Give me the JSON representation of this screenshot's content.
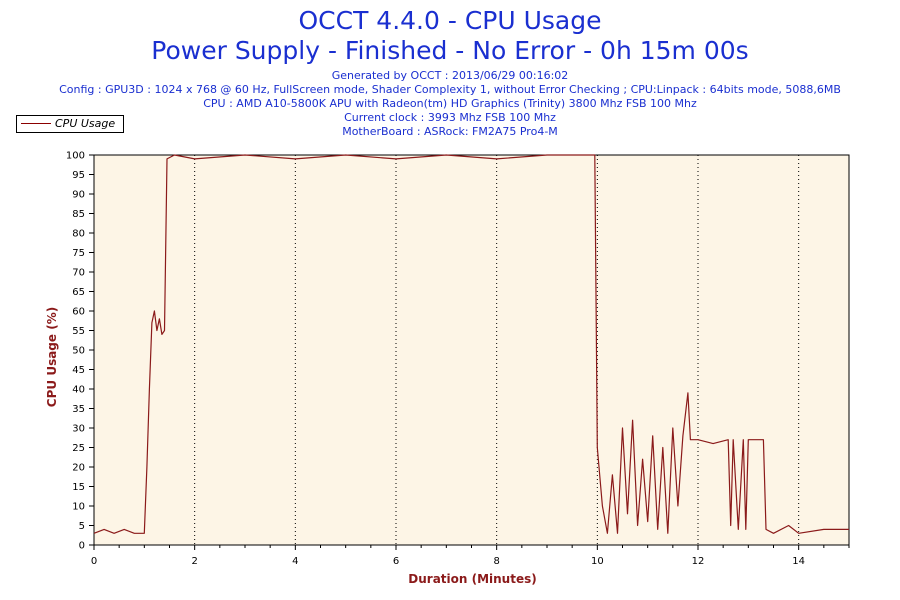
{
  "header": {
    "title": "OCCT 4.4.0 - CPU Usage",
    "subtitle": "Power Supply - Finished - No Error - 0h 15m 00s",
    "generated": "Generated by OCCT : 2013/06/29 00:16:02",
    "config": "Config : GPU3D : 1024 x 768 @ 60 Hz, FullScreen mode, Shader Complexity 1, without Error Checking ; CPU:Linpack : 64bits mode, 5088,6MB",
    "cpu": "CPU : AMD A10-5800K APU with Radeon(tm) HD Graphics (Trinity) 3800 Mhz FSB 100 Mhz",
    "clock": "Current clock : 3993 Mhz FSB 100 Mhz",
    "motherboard": "MotherBoard : ASRock: FM2A75 Pro4-M"
  },
  "colors": {
    "plot_bg": "#fdf5e6",
    "line": "#8b1a1a",
    "title": "#1a2fd0",
    "axis_title": "#8b1a1a"
  },
  "chart_data": {
    "type": "line",
    "title": "OCCT 4.4.0 - CPU Usage",
    "xlabel": "Duration (Minutes)",
    "ylabel": "CPU Usage (%)",
    "xlim": [
      0,
      15
    ],
    "ylim": [
      0,
      100
    ],
    "xticks": [
      0,
      2,
      4,
      6,
      8,
      10,
      12,
      14
    ],
    "yticks": [
      0,
      5,
      10,
      15,
      20,
      25,
      30,
      35,
      40,
      45,
      50,
      55,
      60,
      65,
      70,
      75,
      80,
      85,
      90,
      95,
      100
    ],
    "grid": "vertical dotted",
    "legend_position": "top-left",
    "series": [
      {
        "name": "CPU Usage",
        "points": [
          [
            0.0,
            3
          ],
          [
            0.2,
            4
          ],
          [
            0.4,
            3
          ],
          [
            0.6,
            4
          ],
          [
            0.8,
            3
          ],
          [
            1.0,
            3
          ],
          [
            1.05,
            20
          ],
          [
            1.1,
            40
          ],
          [
            1.15,
            57
          ],
          [
            1.2,
            60
          ],
          [
            1.25,
            55
          ],
          [
            1.3,
            58
          ],
          [
            1.35,
            54
          ],
          [
            1.4,
            55
          ],
          [
            1.45,
            99
          ],
          [
            1.6,
            100
          ],
          [
            2.0,
            99
          ],
          [
            3.0,
            100
          ],
          [
            4.0,
            99
          ],
          [
            5.0,
            100
          ],
          [
            6.0,
            99
          ],
          [
            7.0,
            100
          ],
          [
            8.0,
            99
          ],
          [
            9.0,
            100
          ],
          [
            9.95,
            100
          ],
          [
            10.0,
            25
          ],
          [
            10.1,
            10
          ],
          [
            10.2,
            3
          ],
          [
            10.3,
            18
          ],
          [
            10.4,
            3
          ],
          [
            10.5,
            30
          ],
          [
            10.6,
            8
          ],
          [
            10.7,
            32
          ],
          [
            10.8,
            5
          ],
          [
            10.9,
            22
          ],
          [
            11.0,
            6
          ],
          [
            11.1,
            28
          ],
          [
            11.2,
            4
          ],
          [
            11.3,
            25
          ],
          [
            11.4,
            3
          ],
          [
            11.5,
            30
          ],
          [
            11.6,
            10
          ],
          [
            11.7,
            28
          ],
          [
            11.8,
            39
          ],
          [
            11.85,
            27
          ],
          [
            12.0,
            27
          ],
          [
            12.3,
            26
          ],
          [
            12.6,
            27
          ],
          [
            12.65,
            5
          ],
          [
            12.7,
            27
          ],
          [
            12.8,
            4
          ],
          [
            12.9,
            27
          ],
          [
            12.95,
            4
          ],
          [
            13.0,
            27
          ],
          [
            13.3,
            27
          ],
          [
            13.35,
            4
          ],
          [
            13.5,
            3
          ],
          [
            13.8,
            5
          ],
          [
            14.0,
            3
          ],
          [
            14.5,
            4
          ],
          [
            15.0,
            4
          ]
        ]
      }
    ]
  }
}
